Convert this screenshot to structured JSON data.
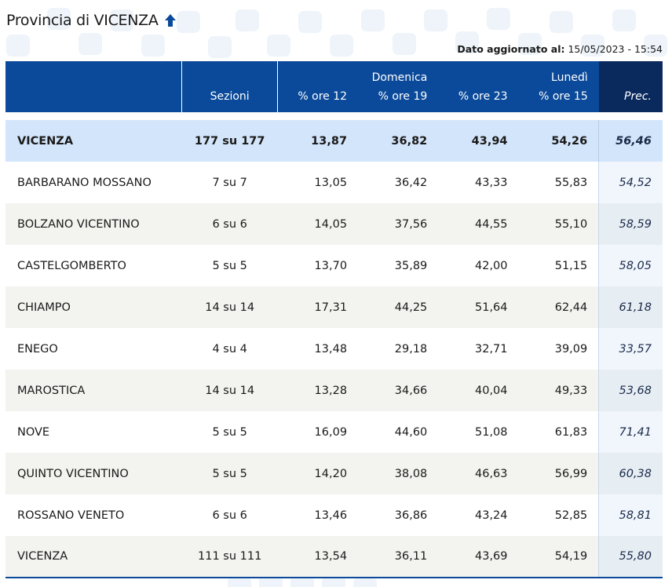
{
  "header": {
    "title": "Provincia di VICENZA",
    "title_icon": "arrow-up-icon",
    "updated_label": "Dato aggiornato al:",
    "updated_value": "15/05/2023 - 15:54"
  },
  "table": {
    "headers": {
      "sezioni": "Sezioni",
      "domenica": "Domenica",
      "lunedi": "Lunedì",
      "ore12": "% ore 12",
      "ore19": "% ore 19",
      "ore23": "% ore 23",
      "ore15": "% ore 15",
      "prec": "Prec."
    },
    "rows": [
      {
        "name": "VICENZA",
        "sezioni": "177 su 177",
        "ore12": "13,87",
        "ore19": "36,82",
        "ore23": "43,94",
        "ore15": "54,26",
        "prec": "56,46"
      },
      {
        "name": "BARBARANO MOSSANO",
        "sezioni": "7 su 7",
        "ore12": "13,05",
        "ore19": "36,42",
        "ore23": "43,33",
        "ore15": "55,83",
        "prec": "54,52"
      },
      {
        "name": "BOLZANO VICENTINO",
        "sezioni": "6 su 6",
        "ore12": "14,05",
        "ore19": "37,56",
        "ore23": "44,55",
        "ore15": "55,10",
        "prec": "58,59"
      },
      {
        "name": "CASTELGOMBERTO",
        "sezioni": "5 su 5",
        "ore12": "13,70",
        "ore19": "35,89",
        "ore23": "42,00",
        "ore15": "51,15",
        "prec": "58,05"
      },
      {
        "name": "CHIAMPO",
        "sezioni": "14 su 14",
        "ore12": "17,31",
        "ore19": "44,25",
        "ore23": "51,64",
        "ore15": "62,44",
        "prec": "61,18"
      },
      {
        "name": "ENEGO",
        "sezioni": "4 su 4",
        "ore12": "13,48",
        "ore19": "29,18",
        "ore23": "32,71",
        "ore15": "39,09",
        "prec": "33,57"
      },
      {
        "name": "MAROSTICA",
        "sezioni": "14 su 14",
        "ore12": "13,28",
        "ore19": "34,66",
        "ore23": "40,04",
        "ore15": "49,33",
        "prec": "53,68"
      },
      {
        "name": "NOVE",
        "sezioni": "5 su 5",
        "ore12": "16,09",
        "ore19": "44,60",
        "ore23": "51,08",
        "ore15": "61,83",
        "prec": "71,41"
      },
      {
        "name": "QUINTO VICENTINO",
        "sezioni": "5 su 5",
        "ore12": "14,20",
        "ore19": "38,08",
        "ore23": "46,63",
        "ore15": "56,99",
        "prec": "60,38"
      },
      {
        "name": "ROSSANO VENETO",
        "sezioni": "6 su 6",
        "ore12": "13,46",
        "ore19": "36,86",
        "ore23": "43,24",
        "ore15": "52,85",
        "prec": "58,81"
      },
      {
        "name": "VICENZA",
        "sezioni": "111 su 111",
        "ore12": "13,54",
        "ore19": "36,11",
        "ore23": "43,69",
        "ore15": "54,19",
        "prec": "55,80"
      }
    ]
  },
  "colors": {
    "header_blue": "#0b4a9a",
    "header_dark": "#0a2a5e",
    "total_row": "#d3e5fa",
    "stripe": "#f3f3f0"
  }
}
